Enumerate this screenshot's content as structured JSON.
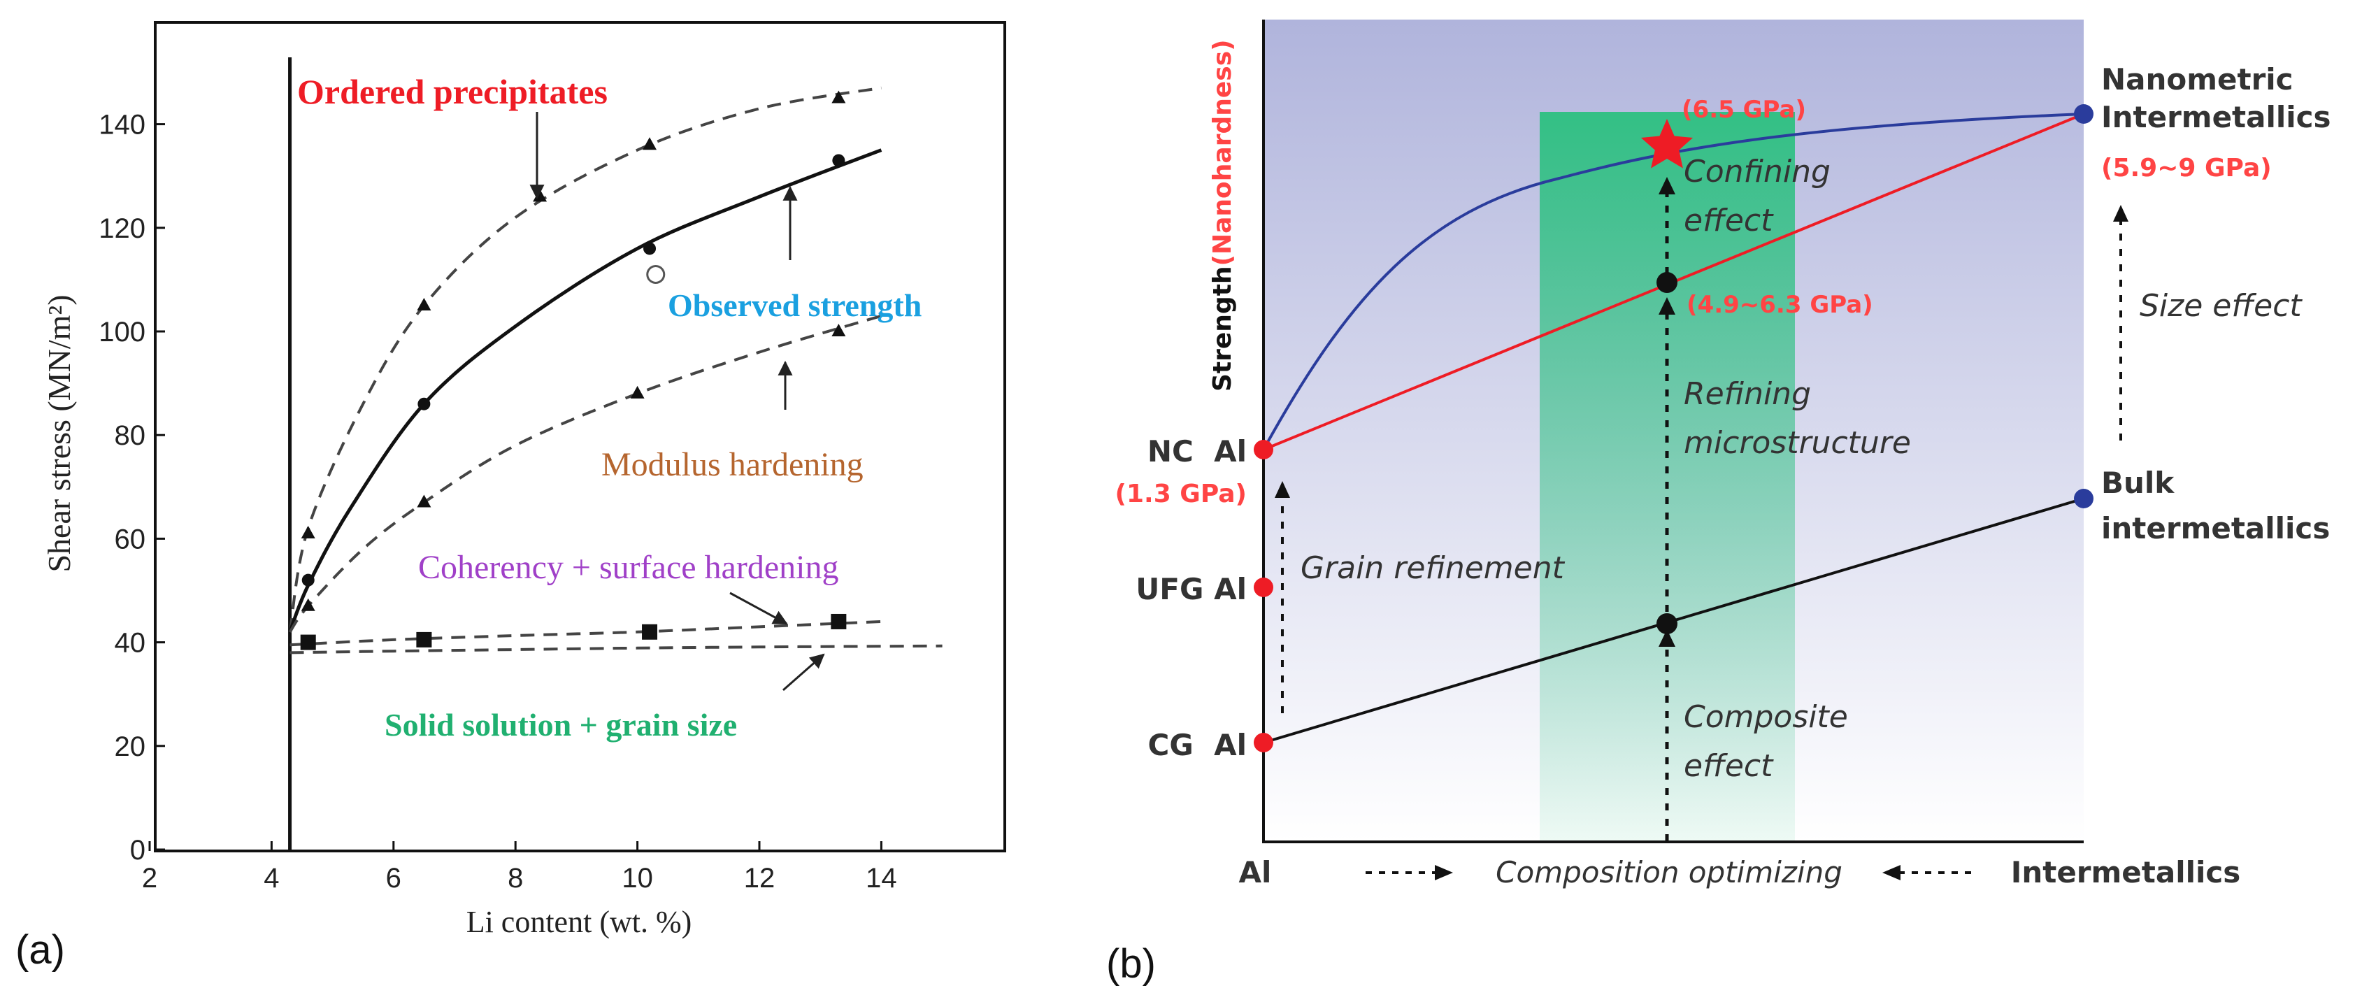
{
  "panels": {
    "a_label": "(a)",
    "b_label": "(b)"
  },
  "colors": {
    "red": "#ee1c25",
    "red_label": "#ff4444",
    "cyan": "#1aa0e0",
    "brown": "#b5652e",
    "purple": "#a040c8",
    "green": "#20b070",
    "navy": "#2a3c9c",
    "green_band": "#2cc080",
    "bg_top": "#b0b4dc"
  },
  "chart_data": [
    {
      "type": "line",
      "panel": "(a)",
      "xlabel": "Li content (wt. %)",
      "ylabel": "Shear stress (MN/m²)",
      "xlim": [
        2,
        16
      ],
      "ylim": [
        0,
        156
      ],
      "xticks": [
        2,
        4,
        6,
        8,
        10,
        12,
        14
      ],
      "yticks": [
        0,
        20,
        40,
        60,
        80,
        100,
        120,
        140
      ],
      "vertical_line_x": 4.3,
      "annotations": [
        {
          "name": "ordered-precipitates",
          "text": "Ordered precipitates",
          "color": "#ee1c25",
          "bold": true
        },
        {
          "name": "observed-strength",
          "text": "Observed strength",
          "color": "#1aa0e0",
          "bold": true
        },
        {
          "name": "modulus-hardening",
          "text": "Modulus hardening",
          "color": "#b5652e",
          "bold": false
        },
        {
          "name": "coherency",
          "text": "Coherency + surface hardening",
          "color": "#a040c8",
          "bold": false
        },
        {
          "name": "solid-solution",
          "text": "Solid solution + grain size",
          "color": "#20b070",
          "bold": true
        }
      ],
      "series": [
        {
          "name": "Ordered precipitates",
          "style": "dashed",
          "curve": [
            [
              4.3,
              42
            ],
            [
              4.6,
              62
            ],
            [
              5.5,
              86
            ],
            [
              6.5,
              105
            ],
            [
              8,
              122
            ],
            [
              10,
              135
            ],
            [
              12,
              143
            ],
            [
              14,
              147
            ]
          ],
          "markers": "triangle",
          "points": [
            [
              4.6,
              61
            ],
            [
              6.5,
              105
            ],
            [
              8.4,
              126
            ],
            [
              10.2,
              136
            ],
            [
              13.3,
              145
            ]
          ]
        },
        {
          "name": "Observed strength",
          "style": "solid",
          "curve": [
            [
              4.3,
              42
            ],
            [
              4.6,
              51
            ],
            [
              5.3,
              66
            ],
            [
              6.5,
              86
            ],
            [
              8,
              101
            ],
            [
              10,
              116
            ],
            [
              12,
              126
            ],
            [
              14,
              135
            ]
          ],
          "markers": "circle",
          "points": [
            [
              4.6,
              52
            ],
            [
              6.5,
              86
            ],
            [
              10.2,
              116
            ],
            [
              13.3,
              133
            ]
          ],
          "open_points": [
            [
              10.3,
              111
            ]
          ]
        },
        {
          "name": "Modulus hardening",
          "style": "dashed",
          "curve": [
            [
              4.3,
              42
            ],
            [
              4.6,
              47
            ],
            [
              5.5,
              58
            ],
            [
              6.5,
              67
            ],
            [
              8,
              78
            ],
            [
              10,
              88
            ],
            [
              12,
              96
            ],
            [
              14,
              103
            ]
          ],
          "markers": "triangle",
          "points": [
            [
              4.6,
              47
            ],
            [
              6.5,
              67
            ],
            [
              10,
              88
            ],
            [
              13.3,
              100
            ]
          ]
        },
        {
          "name": "Coherency + surface hardening",
          "style": "dashed",
          "curve": [
            [
              4.3,
              39.5
            ],
            [
              6,
              40.5
            ],
            [
              8,
              41.3
            ],
            [
              10,
              42
            ],
            [
              12,
              43
            ],
            [
              14,
              44
            ]
          ],
          "markers": "square",
          "points": [
            [
              4.6,
              40
            ],
            [
              6.5,
              40.5
            ],
            [
              10.2,
              42
            ],
            [
              13.3,
              44
            ]
          ]
        },
        {
          "name": "Solid solution + grain size",
          "style": "dashed",
          "curve": [
            [
              4.3,
              38
            ],
            [
              6,
              38.3
            ],
            [
              8,
              38.6
            ],
            [
              10,
              38.9
            ],
            [
              12,
              39.1
            ],
            [
              15,
              39.3
            ]
          ],
          "markers": "none",
          "points": []
        }
      ]
    },
    {
      "type": "diagram",
      "panel": "(b)",
      "ylabel_main": "Strength",
      "ylabel_paren": "(Nanohardness)",
      "x_left": "Al",
      "x_middle": "Composition optimizing",
      "x_right": "Intermetallics",
      "points": {
        "nc_al": "NC  Al",
        "nc_val": "(1.3 GPa)",
        "ufg_al": "UFG Al",
        "cg_al": "CG  Al",
        "nano_1": "Nanometric",
        "nano_2": "Intermetallics",
        "nano_val": "(5.9~9 GPa)",
        "bulk_1": "Bulk",
        "bulk_2": "intermetallics",
        "star_val": "(6.5 GPa)",
        "mid_val": "(4.9~6.3 GPa)"
      },
      "effects": {
        "confining_1": "Confining",
        "confining_2": "effect",
        "refining_1": "Refining",
        "refining_2": "microstructure",
        "composite_1": "Composite",
        "composite_2": "effect",
        "grain": "Grain refinement",
        "size": "Size effect"
      }
    }
  ]
}
